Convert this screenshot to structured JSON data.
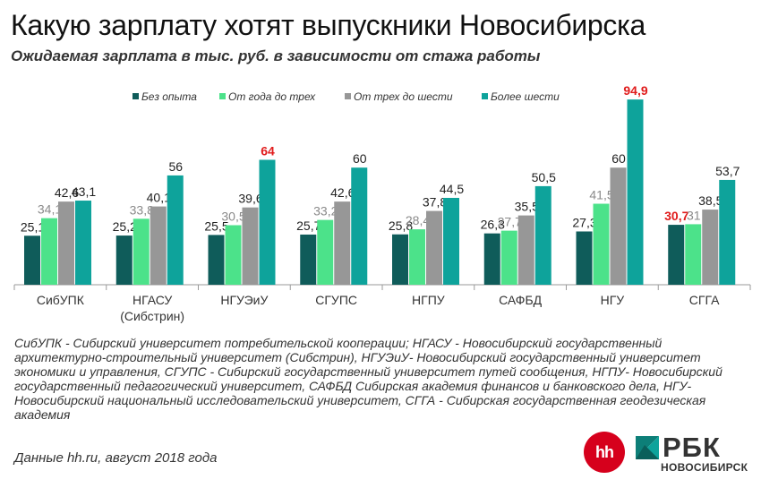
{
  "title": "Какую зарплату хотят выпускники Новосибирска",
  "subtitle": "Ожидаемая зарплата в тыс. руб. в зависимости от стажа работы",
  "notes": "СибУПК - Сибирский университет потребительской кооперации; НГАСУ - Новосибирский государственный архитектурно-строительный университет (Сибстрин), НГУЭиУ- Новосибирский государственный университет экономики и управления, СГУПС   - Сибирский государственный университет путей сообщения, НГПУ- Новосибирский государственный педагогический университет, САФБД    Сибирская академия финансов и банковского дела, НГУ- Новосибирский национальный исследовательский университет, СГГА - Сибирская государственная геодезическая академия",
  "source": "Данные hh.ru, август 2018 года",
  "logos": {
    "hh": "hh",
    "rbc": "РБК",
    "rbc_city": "НОВОСИБИРСК"
  },
  "colors": {
    "s1": "#0f5c5a",
    "s2": "#4ce28a",
    "s3": "#979797",
    "s4": "#0ea39b",
    "highlight": "#e01b1b",
    "text": "#333333"
  },
  "chart_data": {
    "type": "bar",
    "categories": [
      "СибУПК",
      "НГАСУ\n(Сибстрин)",
      "НГУЭиУ",
      "СГУПС",
      "НГПУ",
      "САФБД",
      "НГУ",
      "СГГА"
    ],
    "series": [
      {
        "name": "Без опыта",
        "values": [
          25.1,
          25.2,
          25.5,
          25.7,
          25.8,
          26.3,
          27.3,
          30.7
        ]
      },
      {
        "name": "От года  до трех",
        "values": [
          34.1,
          33.8,
          30.5,
          33.2,
          28.4,
          27.7,
          41.5,
          31
        ]
      },
      {
        "name": "От трех до шести",
        "values": [
          42.6,
          40.1,
          39.6,
          42.6,
          37.8,
          35.5,
          60,
          38.5
        ]
      },
      {
        "name": "Более  шести",
        "values": [
          43.1,
          56,
          64,
          60,
          44.5,
          50.5,
          94.9,
          53.7
        ]
      }
    ],
    "value_labels": [
      [
        "25,1",
        "25,2",
        "25,5",
        "25,7",
        "25,8",
        "26,3",
        "27,3",
        "30,7"
      ],
      [
        "34,1",
        "33,8",
        "30,5",
        "33,2",
        "28,4",
        "27,7",
        "41,5",
        "31"
      ],
      [
        "42,6",
        "40,1",
        "39,6",
        "42,6",
        "37,8",
        "35,5",
        "60",
        "38,5"
      ],
      [
        "43,1",
        "56",
        "64",
        "60",
        "44,5",
        "50,5",
        "94,9",
        "53,7"
      ]
    ],
    "highlighted_labels": [
      [
        3,
        2
      ],
      [
        3,
        6
      ],
      [
        0,
        7
      ]
    ],
    "ylim": [
      0,
      100
    ],
    "legend": "top"
  }
}
